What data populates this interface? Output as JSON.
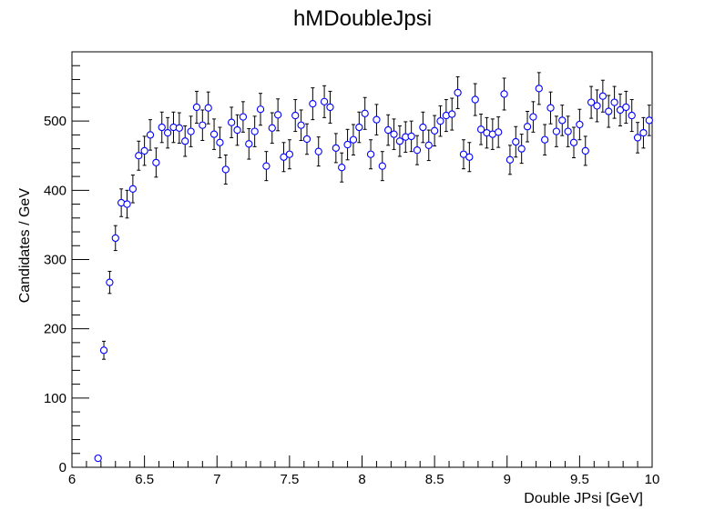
{
  "chart_data": {
    "type": "scatter",
    "title": "hMDoubleJpsi",
    "xlabel": "Double JPsi [GeV]",
    "ylabel": "Candidates / GeV",
    "xlim": [
      6,
      10
    ],
    "ylim": [
      0,
      600
    ],
    "xticks": [
      "6",
      "6.5",
      "7",
      "7.5",
      "8",
      "8.5",
      "9",
      "9.5",
      "10"
    ],
    "yticks": [
      "0",
      "100",
      "200",
      "300",
      "400",
      "500"
    ],
    "grid": false,
    "legend": "none",
    "marker_color": "#0000ff",
    "error_bar_color": "#000000",
    "series": [
      {
        "x": [
          6.18,
          6.22,
          6.26,
          6.3,
          6.34,
          6.38,
          6.42,
          6.46,
          6.5,
          6.54,
          6.58,
          6.62,
          6.66,
          6.7,
          6.74,
          6.78,
          6.82,
          6.86,
          6.9,
          6.94,
          6.98,
          7.02,
          7.06,
          7.1,
          7.14,
          7.18,
          7.22,
          7.26,
          7.3,
          7.34,
          7.38,
          7.42,
          7.46,
          7.5,
          7.54,
          7.58,
          7.62,
          7.66,
          7.7,
          7.74,
          7.78,
          7.82,
          7.86,
          7.9,
          7.94,
          7.98,
          8.02,
          8.06,
          8.1,
          8.14,
          8.18,
          8.22,
          8.26,
          8.3,
          8.34,
          8.38,
          8.42,
          8.46,
          8.5,
          8.54,
          8.58,
          8.62,
          8.66,
          8.7,
          8.74,
          8.78,
          8.82,
          8.86,
          8.9,
          8.94,
          8.98,
          9.02,
          9.06,
          9.1,
          9.14,
          9.18,
          9.22,
          9.26,
          9.3,
          9.34,
          9.38,
          9.42,
          9.46,
          9.5,
          9.54,
          9.58,
          9.62,
          9.66,
          9.7,
          9.74,
          9.78,
          9.82,
          9.86,
          9.9,
          9.94,
          9.98
        ],
        "y": [
          13,
          169,
          267,
          331,
          382,
          380,
          402,
          450,
          457,
          480,
          440,
          491,
          483,
          491,
          490,
          471,
          485,
          520,
          494,
          519,
          481,
          469,
          430,
          498,
          487,
          506,
          467,
          485,
          517,
          435,
          490,
          509,
          448,
          452,
          508,
          494,
          474,
          525,
          456,
          528,
          520,
          461,
          433,
          466,
          473,
          491,
          511,
          452,
          502,
          435,
          487,
          481,
          471,
          477,
          478,
          458,
          491,
          465,
          486,
          500,
          508,
          510,
          541,
          452,
          448,
          531,
          488,
          483,
          481,
          484,
          539,
          444,
          470,
          460,
          492,
          506,
          547,
          473,
          519,
          485,
          501,
          485,
          469,
          495,
          457,
          527,
          522,
          536,
          514,
          527,
          516,
          520,
          508,
          476,
          483,
          501
        ],
        "err": [
          4,
          13,
          16,
          18,
          20,
          20,
          20,
          21,
          21,
          22,
          21,
          22,
          22,
          22,
          22,
          22,
          22,
          23,
          22,
          23,
          22,
          22,
          21,
          22,
          22,
          22,
          22,
          22,
          23,
          21,
          22,
          23,
          21,
          21,
          23,
          22,
          22,
          23,
          21,
          23,
          23,
          21,
          21,
          22,
          22,
          22,
          23,
          21,
          22,
          21,
          22,
          22,
          22,
          22,
          22,
          21,
          22,
          22,
          22,
          22,
          23,
          23,
          23,
          21,
          21,
          23,
          22,
          22,
          22,
          22,
          23,
          21,
          22,
          21,
          22,
          22,
          23,
          22,
          23,
          22,
          22,
          22,
          22,
          22,
          21,
          23,
          23,
          23,
          23,
          23,
          23,
          23,
          23,
          22,
          22,
          22
        ]
      }
    ]
  }
}
